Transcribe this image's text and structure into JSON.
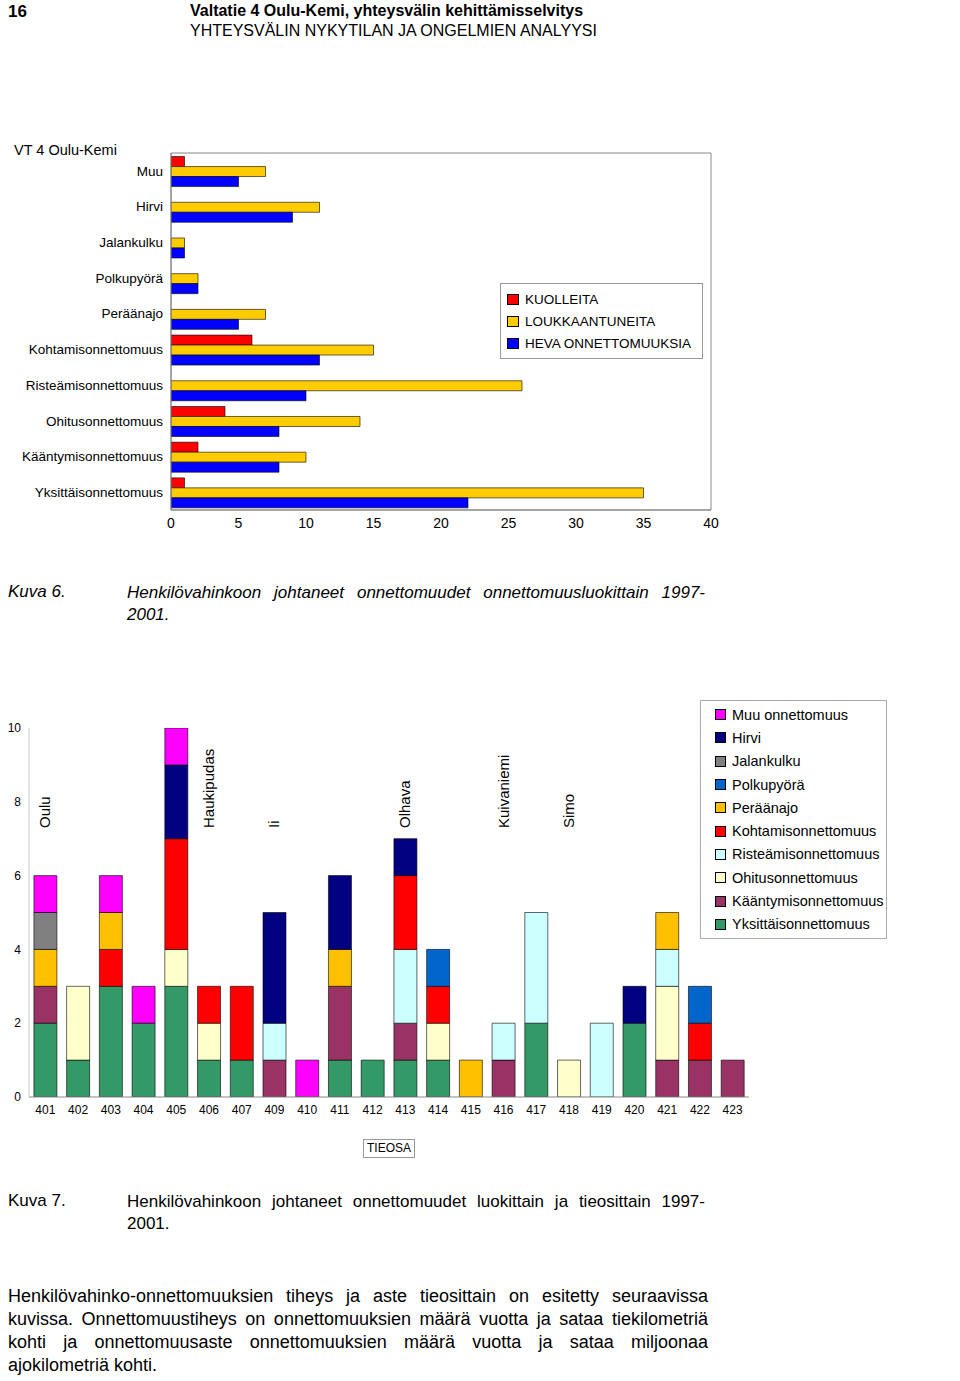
{
  "header": {
    "page_number": "16",
    "title": "Valtatie 4 Oulu-Kemi, yhteysvälin kehittämisselvitys",
    "subtitle": "YHTEYSVÄLIN NYKYTILAN JA ONGELMIEN ANALYYSI"
  },
  "chart_data": [
    {
      "type": "bar",
      "title": "VT 4 Oulu-Kemi",
      "orientation": "horizontal",
      "categories": [
        "Muu",
        "Hirvi",
        "Jalankulku",
        "Polkupyörä",
        "Peräänajo",
        "Kohtamisonnettomuus",
        "Risteämisonnettomuus",
        "Ohitusonnettomuus",
        "Kääntymisonnettomuus",
        "Yksittäisonnettomuus"
      ],
      "series": [
        {
          "name": "KUOLLEITA",
          "color": "#ff0000",
          "values": [
            1,
            0,
            0,
            0,
            0,
            6,
            0,
            4,
            2,
            1
          ]
        },
        {
          "name": "LOUKKAANTUNEITA",
          "color": "#ffcc00",
          "values": [
            7,
            11,
            1,
            2,
            7,
            15,
            26,
            14,
            10,
            35
          ]
        },
        {
          "name": "HEVA ONNETTOMUUKSIA",
          "color": "#0000ff",
          "values": [
            5,
            9,
            1,
            2,
            5,
            11,
            10,
            8,
            8,
            22
          ]
        }
      ],
      "xlim": [
        0,
        40
      ],
      "xticks": [
        0,
        5,
        10,
        15,
        20,
        25,
        30,
        35,
        40
      ],
      "legend": "top-right",
      "grid": false
    },
    {
      "type": "bar",
      "stacked": true,
      "x_label": "TIEOSA",
      "categories": [
        "401",
        "402",
        "403",
        "404",
        "405",
        "406",
        "407",
        "409",
        "410",
        "411",
        "412",
        "413",
        "414",
        "415",
        "416",
        "417",
        "418",
        "419",
        "420",
        "421",
        "422",
        "423"
      ],
      "series": [
        {
          "name": "Yksittäisonnettomuus",
          "color": "#339966",
          "values": [
            2,
            1,
            3,
            2,
            3,
            1,
            1,
            0,
            0,
            1,
            1,
            1,
            1,
            0,
            0,
            2,
            0,
            0,
            2,
            0,
            0,
            0
          ]
        },
        {
          "name": "Kääntymisonnettomuus",
          "color": "#993366",
          "values": [
            1,
            0,
            0,
            0,
            0,
            0,
            0,
            1,
            0,
            2,
            0,
            1,
            0,
            0,
            1,
            0,
            0,
            0,
            0,
            1,
            1,
            1
          ]
        },
        {
          "name": "Ohitusonnettomuus",
          "color": "#ffffcc",
          "values": [
            0,
            2,
            0,
            0,
            1,
            1,
            0,
            0,
            0,
            0,
            0,
            0,
            1,
            0,
            0,
            0,
            1,
            0,
            0,
            2,
            0,
            0
          ]
        },
        {
          "name": "Risteämisonnettomuus",
          "color": "#ccffff",
          "values": [
            0,
            0,
            0,
            0,
            0,
            0,
            0,
            1,
            0,
            0,
            0,
            2,
            0,
            0,
            1,
            3,
            0,
            2,
            0,
            1,
            0,
            0
          ]
        },
        {
          "name": "Kohtamisonnettomuus",
          "color": "#ff0000",
          "values": [
            0,
            0,
            1,
            0,
            3,
            1,
            2,
            0,
            0,
            0,
            0,
            2,
            1,
            0,
            0,
            0,
            0,
            0,
            0,
            0,
            1,
            0
          ]
        },
        {
          "name": "Peräänajo",
          "color": "#ffc000",
          "values": [
            1,
            0,
            1,
            0,
            0,
            0,
            0,
            0,
            0,
            1,
            0,
            0,
            0,
            1,
            0,
            0,
            0,
            0,
            0,
            1,
            0,
            0
          ]
        },
        {
          "name": "Polkupyörä",
          "color": "#0066cc",
          "values": [
            0,
            0,
            0,
            0,
            0,
            0,
            0,
            0,
            0,
            0,
            0,
            0,
            1,
            0,
            0,
            0,
            0,
            0,
            0,
            0,
            1,
            0
          ]
        },
        {
          "name": "Jalankulku",
          "color": "#808080",
          "values": [
            1,
            0,
            0,
            0,
            0,
            0,
            0,
            0,
            0,
            0,
            0,
            0,
            0,
            0,
            0,
            0,
            0,
            0,
            0,
            0,
            0,
            0
          ]
        },
        {
          "name": "Hirvi",
          "color": "#000080",
          "values": [
            0,
            0,
            0,
            0,
            2,
            0,
            0,
            3,
            0,
            2,
            0,
            1,
            0,
            0,
            0,
            0,
            0,
            0,
            1,
            0,
            0,
            0
          ]
        },
        {
          "name": "Muu onnettomuus",
          "color": "#ff00ff",
          "values": [
            1,
            0,
            1,
            1,
            1,
            0,
            0,
            0,
            1,
            0,
            0,
            0,
            0,
            0,
            0,
            0,
            0,
            0,
            0,
            0,
            0,
            0
          ]
        }
      ],
      "ylim": [
        0,
        10
      ],
      "yticks": [
        0,
        2,
        4,
        6,
        8,
        10
      ],
      "legend": "right",
      "grid": false,
      "annotations": [
        {
          "text": "Oulu",
          "x": "401"
        },
        {
          "text": "Haukipudas",
          "x": "406"
        },
        {
          "text": "Ii",
          "x": "409"
        },
        {
          "text": "Olhava",
          "x": "413"
        },
        {
          "text": "Kuivaniemi",
          "x": "416"
        },
        {
          "text": "Simo",
          "x": "418"
        }
      ]
    }
  ],
  "captions": [
    {
      "label": "Kuva 6.",
      "text": "Henkilövahinkoon johtaneet onnettomuudet onnettomuusluokittain 1997-2001."
    },
    {
      "label": "Kuva 7.",
      "text": "Henkilövahinkoon johtaneet onnettomuudet luokittain ja tieosittain 1997-2001."
    }
  ],
  "body": "Henkilövahinko-onnettomuuksien tiheys ja aste tieosittain on esitetty seuraavissa kuvissa. Onnettomuustiheys on onnettomuuksien määrä vuotta ja sataa tiekilometriä kohti ja onnettomuusaste onnettomuuksien määrä vuotta ja sataa miljoonaa ajokilometriä kohti."
}
